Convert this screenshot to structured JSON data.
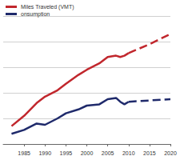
{
  "chart_data": {
    "type": "line",
    "x": [
      1982,
      1985,
      1988,
      1990,
      1993,
      1995,
      1998,
      2000,
      2003,
      2005,
      2007,
      2008,
      2009,
      2010,
      2015,
      2020
    ],
    "series": [
      {
        "name": "Miles Traveled (VMT)",
        "color": "#c1272d",
        "line_style": "solid",
        "values": [
          0.7,
          1.1,
          1.6,
          1.85,
          2.1,
          2.35,
          2.7,
          2.9,
          3.15,
          3.4,
          3.45,
          3.4,
          3.45,
          3.55,
          null,
          null
        ]
      },
      {
        "name": "Miles Traveled (VMT)",
        "color": "#c1272d",
        "line_style": "dashed",
        "values": [
          null,
          null,
          null,
          null,
          null,
          null,
          null,
          null,
          null,
          null,
          null,
          null,
          null,
          3.55,
          3.9,
          4.3
        ]
      },
      {
        "name": "onsumption",
        "color": "#1f2a6b",
        "line_style": "solid",
        "values": [
          0.4,
          0.55,
          0.8,
          0.75,
          1.0,
          1.2,
          1.35,
          1.5,
          1.55,
          1.75,
          1.8,
          1.65,
          1.55,
          1.65,
          null,
          null
        ]
      },
      {
        "name": "onsumption",
        "color": "#1f2a6b",
        "line_style": "dashed",
        "values": [
          null,
          null,
          null,
          null,
          null,
          null,
          null,
          null,
          null,
          null,
          null,
          null,
          null,
          1.65,
          1.7,
          1.75
        ]
      }
    ],
    "xlim": [
      1980,
      2020
    ],
    "xticks": [
      1985,
      1990,
      1995,
      2000,
      2005,
      2010,
      2015,
      2020
    ],
    "ylim": [
      0,
      5
    ],
    "yticks": [
      0,
      1,
      2,
      3,
      4,
      5
    ],
    "grid": true,
    "legend": "top-left",
    "tick_labels": "x"
  }
}
